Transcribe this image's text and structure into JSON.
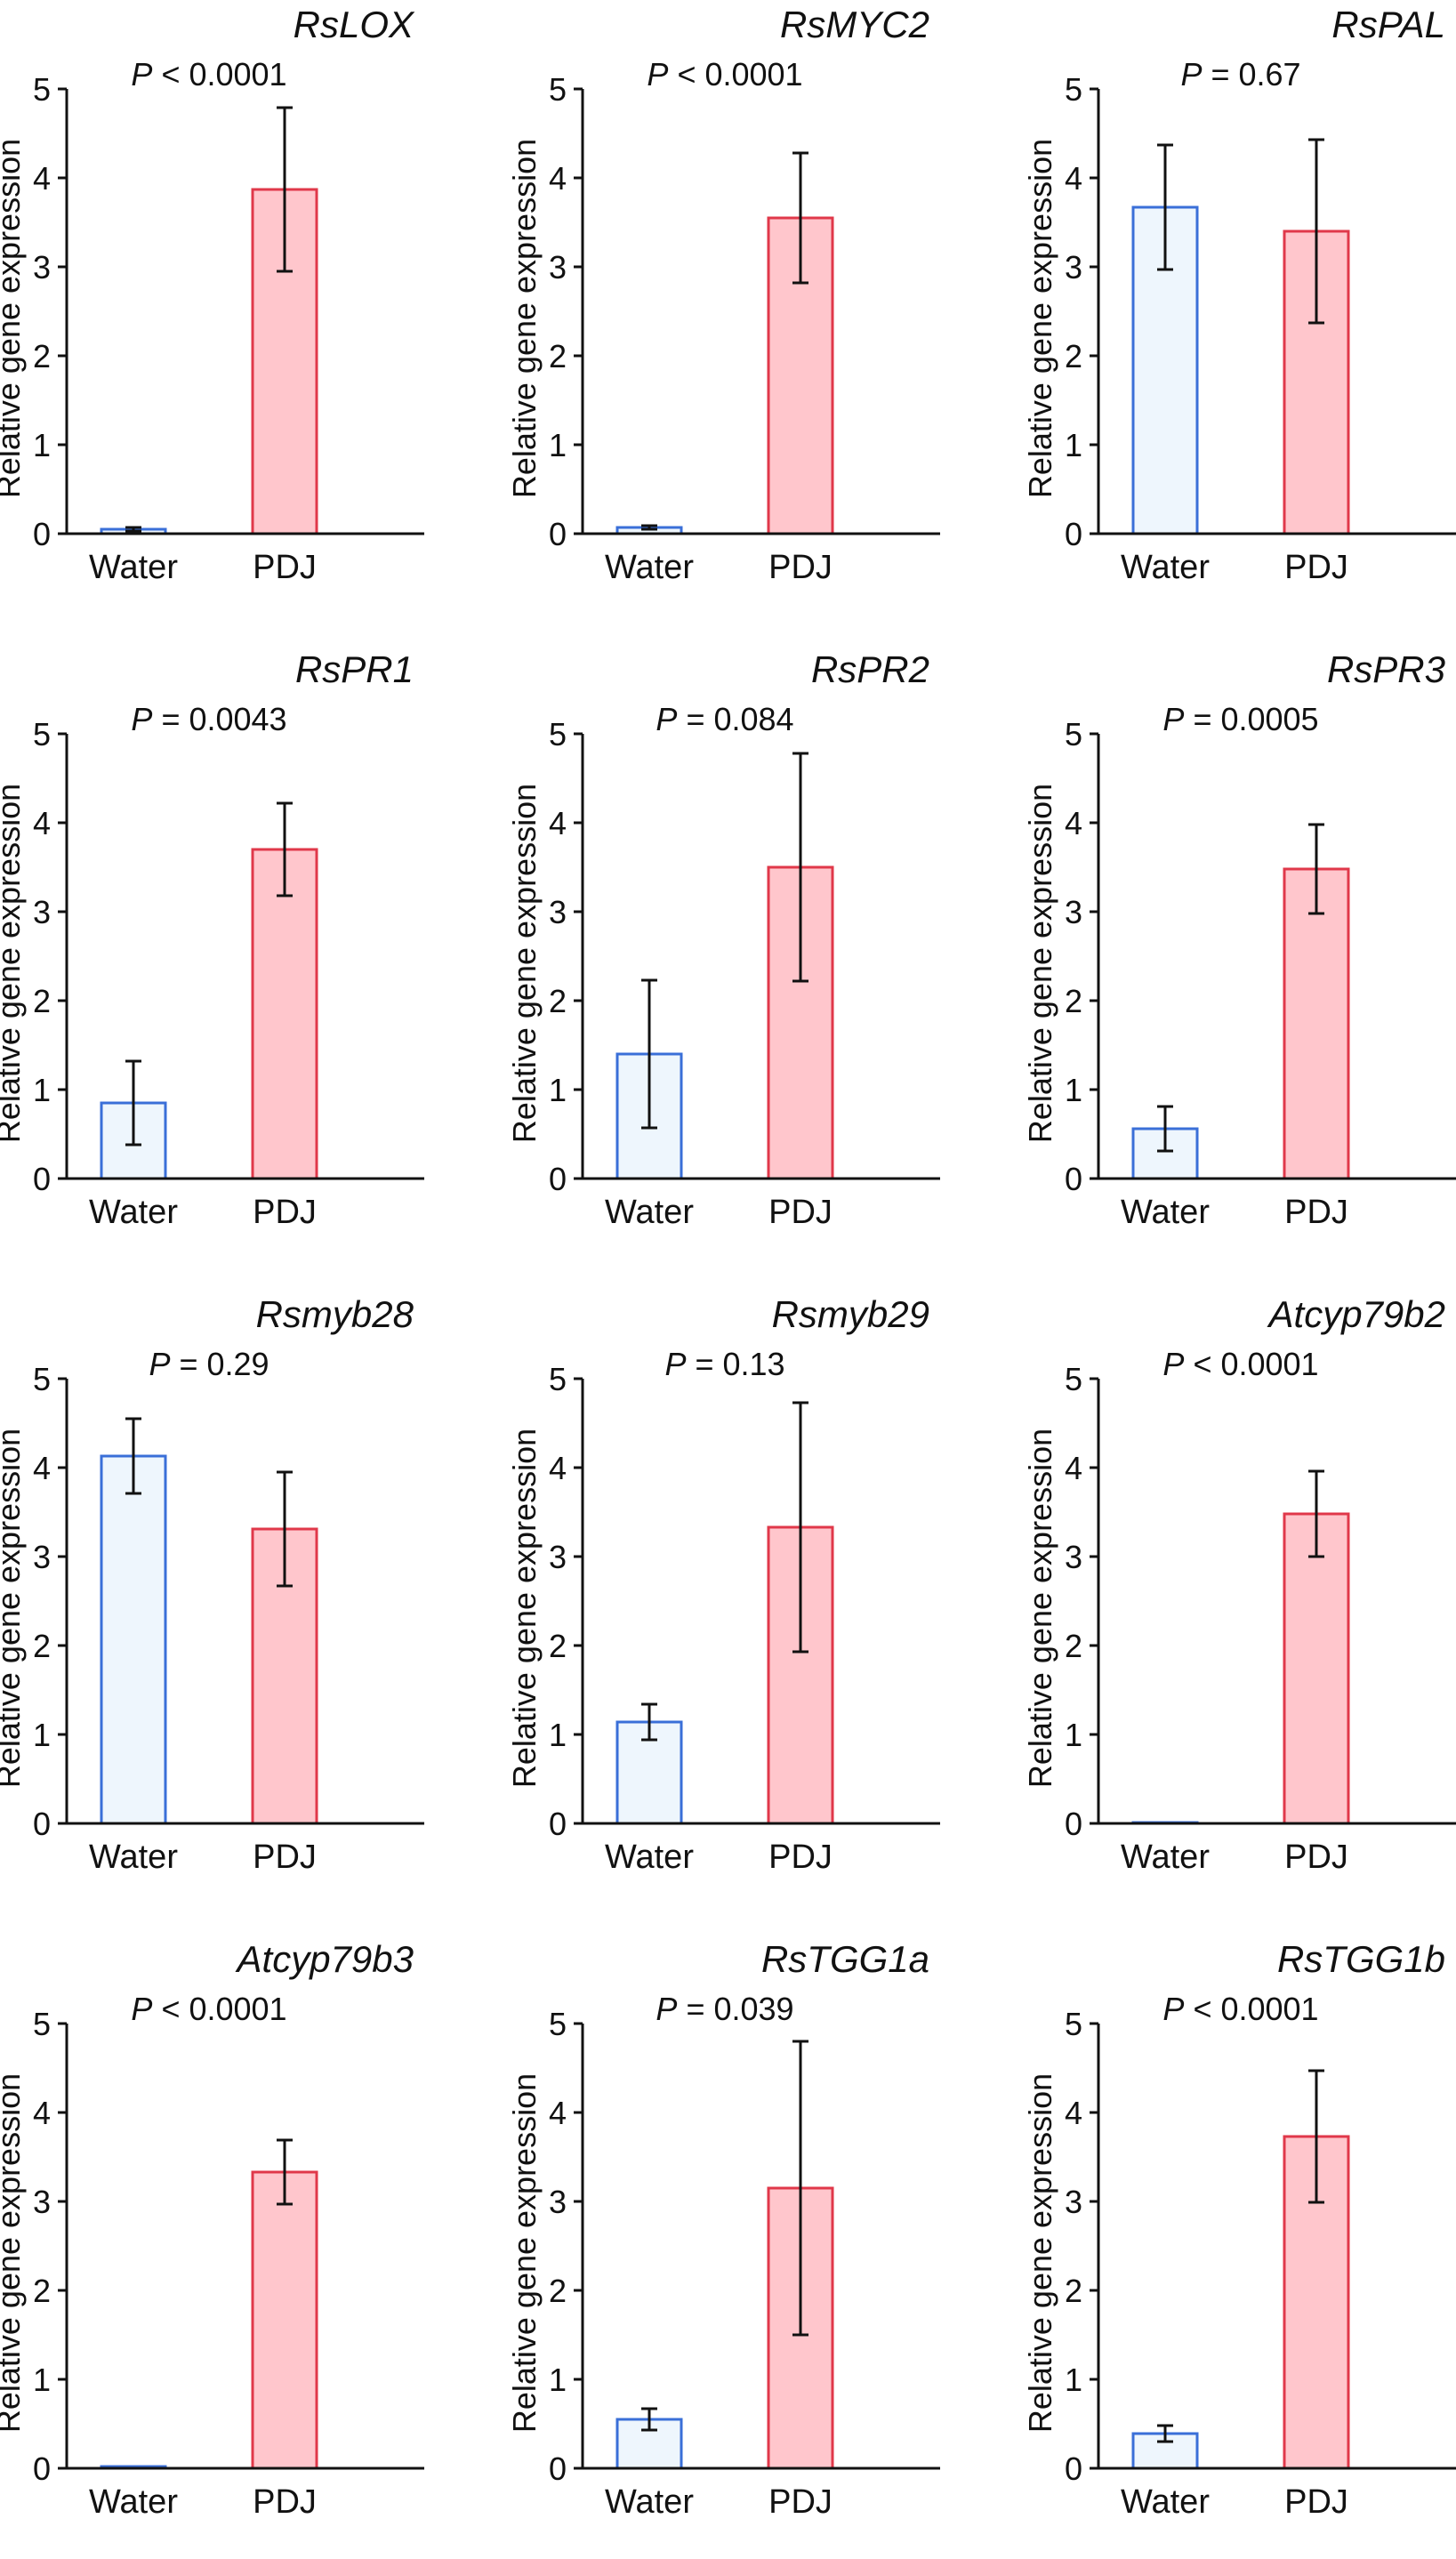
{
  "colors": {
    "water_fill": "#EEF6FD",
    "water_stroke": "#3A6FD8",
    "pdj_fill": "#FFC6CC",
    "pdj_stroke": "#E0384A",
    "axis": "#111111"
  },
  "chart_data": [
    {
      "type": "bar",
      "title": "RsLOX",
      "p_label": "P",
      "p_rest": " < 0.0001",
      "ylabel": "Relative gene expression",
      "categories": [
        "Water",
        "PDJ"
      ],
      "values": [
        0.05,
        3.87
      ],
      "errors": [
        0.02,
        0.92
      ],
      "ylim": [
        0,
        5
      ],
      "yticks": [
        "0",
        "1",
        "2",
        "3",
        "4",
        "5"
      ]
    },
    {
      "type": "bar",
      "title": "RsMYC2",
      "p_label": "P",
      "p_rest": " < 0.0001",
      "ylabel": "Relative gene expression",
      "categories": [
        "Water",
        "PDJ"
      ],
      "values": [
        0.07,
        3.55
      ],
      "errors": [
        0.02,
        0.73
      ],
      "ylim": [
        0,
        5
      ],
      "yticks": [
        "0",
        "1",
        "2",
        "3",
        "4",
        "5"
      ]
    },
    {
      "type": "bar",
      "title": "RsPAL",
      "p_label": "P",
      "p_rest": " = 0.67",
      "ylabel": "Relative gene expression",
      "categories": [
        "Water",
        "PDJ"
      ],
      "values": [
        3.67,
        3.4
      ],
      "errors": [
        0.7,
        1.03
      ],
      "ylim": [
        0,
        5
      ],
      "yticks": [
        "0",
        "1",
        "2",
        "3",
        "4",
        "5"
      ]
    },
    {
      "type": "bar",
      "title": "RsPR1",
      "p_label": "P",
      "p_rest": " = 0.0043",
      "ylabel": "Relative gene expression",
      "categories": [
        "Water",
        "PDJ"
      ],
      "values": [
        0.85,
        3.7
      ],
      "errors": [
        0.47,
        0.52
      ],
      "ylim": [
        0,
        5
      ],
      "yticks": [
        "0",
        "1",
        "2",
        "3",
        "4",
        "5"
      ]
    },
    {
      "type": "bar",
      "title": "RsPR2",
      "p_label": "P",
      "p_rest": " = 0.084",
      "ylabel": "Relative gene expression",
      "categories": [
        "Water",
        "PDJ"
      ],
      "values": [
        1.4,
        3.5
      ],
      "errors": [
        0.83,
        1.28
      ],
      "ylim": [
        0,
        5
      ],
      "yticks": [
        "0",
        "1",
        "2",
        "3",
        "4",
        "5"
      ]
    },
    {
      "type": "bar",
      "title": "RsPR3",
      "p_label": "P",
      "p_rest": " = 0.0005",
      "ylabel": "Relative gene expression",
      "categories": [
        "Water",
        "PDJ"
      ],
      "values": [
        0.56,
        3.48
      ],
      "errors": [
        0.25,
        0.5
      ],
      "ylim": [
        0,
        5
      ],
      "yticks": [
        "0",
        "1",
        "2",
        "3",
        "4",
        "5"
      ]
    },
    {
      "type": "bar",
      "title": "Rsmyb28",
      "p_label": "P",
      "p_rest": " = 0.29",
      "ylabel": "Relative gene expression",
      "categories": [
        "Water",
        "PDJ"
      ],
      "values": [
        4.13,
        3.31
      ],
      "errors": [
        0.42,
        0.64
      ],
      "ylim": [
        0,
        5
      ],
      "yticks": [
        "0",
        "1",
        "2",
        "3",
        "4",
        "5"
      ]
    },
    {
      "type": "bar",
      "title": "Rsmyb29",
      "p_label": "P",
      "p_rest": " = 0.13",
      "ylabel": "Relative gene expression",
      "categories": [
        "Water",
        "PDJ"
      ],
      "values": [
        1.14,
        3.33
      ],
      "errors": [
        0.2,
        1.4
      ],
      "ylim": [
        0,
        5
      ],
      "yticks": [
        "0",
        "1",
        "2",
        "3",
        "4",
        "5"
      ]
    },
    {
      "type": "bar",
      "title": "Atcyp79b2",
      "p_label": "P",
      "p_rest": " < 0.0001",
      "ylabel": "Relative gene expression",
      "categories": [
        "Water",
        "PDJ"
      ],
      "values": [
        0.01,
        3.48
      ],
      "errors": [
        0.0,
        0.48
      ],
      "ylim": [
        0,
        5
      ],
      "yticks": [
        "0",
        "1",
        "2",
        "3",
        "4",
        "5"
      ]
    },
    {
      "type": "bar",
      "title": "Atcyp79b3",
      "p_label": "P",
      "p_rest": " < 0.0001",
      "ylabel": "Relative gene expression",
      "categories": [
        "Water",
        "PDJ"
      ],
      "values": [
        0.02,
        3.33
      ],
      "errors": [
        0.0,
        0.36
      ],
      "ylim": [
        0,
        5
      ],
      "yticks": [
        "0",
        "1",
        "2",
        "3",
        "4",
        "5"
      ]
    },
    {
      "type": "bar",
      "title": "RsTGG1a",
      "p_label": "P",
      "p_rest": " = 0.039",
      "ylabel": "Relative gene expression",
      "categories": [
        "Water",
        "PDJ"
      ],
      "values": [
        0.55,
        3.15
      ],
      "errors": [
        0.12,
        1.65
      ],
      "ylim": [
        0,
        5
      ],
      "yticks": [
        "0",
        "1",
        "2",
        "3",
        "4",
        "5"
      ]
    },
    {
      "type": "bar",
      "title": "RsTGG1b",
      "p_label": "P",
      "p_rest": " < 0.0001",
      "ylabel": "Relative gene expression",
      "categories": [
        "Water",
        "PDJ"
      ],
      "values": [
        0.39,
        3.73
      ],
      "errors": [
        0.09,
        0.74
      ],
      "ylim": [
        0,
        5
      ],
      "yticks": [
        "0",
        "1",
        "2",
        "3",
        "4",
        "5"
      ]
    }
  ]
}
